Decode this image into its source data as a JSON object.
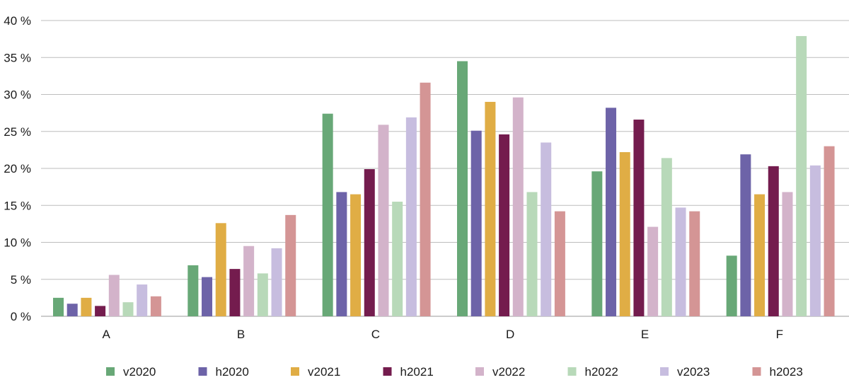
{
  "chart_data": {
    "type": "bar",
    "categories": [
      "A",
      "B",
      "C",
      "D",
      "E",
      "F"
    ],
    "ylim": [
      0,
      40
    ],
    "yticks": [
      0,
      5,
      10,
      15,
      20,
      25,
      30,
      35,
      40
    ],
    "y_tick_labels": [
      "0 %",
      "5 %",
      "10 %",
      "15 %",
      "20 %",
      "25 %",
      "30 %",
      "35 %",
      "40 %"
    ],
    "grid": "horizontal",
    "legend_position": "bottom",
    "series": [
      {
        "name": "v2020",
        "color": "#68a877",
        "values": [
          2.5,
          6.9,
          27.4,
          34.5,
          19.6,
          8.2
        ]
      },
      {
        "name": "h2020",
        "color": "#6d63a8",
        "values": [
          1.7,
          5.3,
          16.8,
          25.1,
          28.2,
          21.9
        ]
      },
      {
        "name": "v2021",
        "color": "#e0ad45",
        "values": [
          2.5,
          12.6,
          16.5,
          29.0,
          22.2,
          16.5
        ]
      },
      {
        "name": "h2021",
        "color": "#741c4e",
        "values": [
          1.4,
          6.4,
          19.9,
          24.6,
          26.6,
          20.3
        ]
      },
      {
        "name": "v2022",
        "color": "#d3b3ca",
        "values": [
          5.6,
          9.5,
          25.9,
          29.6,
          12.1,
          16.8
        ]
      },
      {
        "name": "h2022",
        "color": "#b8d9b9",
        "values": [
          1.9,
          5.8,
          15.5,
          16.8,
          21.4,
          37.9
        ]
      },
      {
        "name": "v2023",
        "color": "#c7bddf",
        "values": [
          4.3,
          9.2,
          26.9,
          23.5,
          14.7,
          20.4
        ]
      },
      {
        "name": "h2023",
        "color": "#d49595",
        "values": [
          2.7,
          13.7,
          31.6,
          14.2,
          14.2,
          23.0
        ]
      }
    ]
  }
}
